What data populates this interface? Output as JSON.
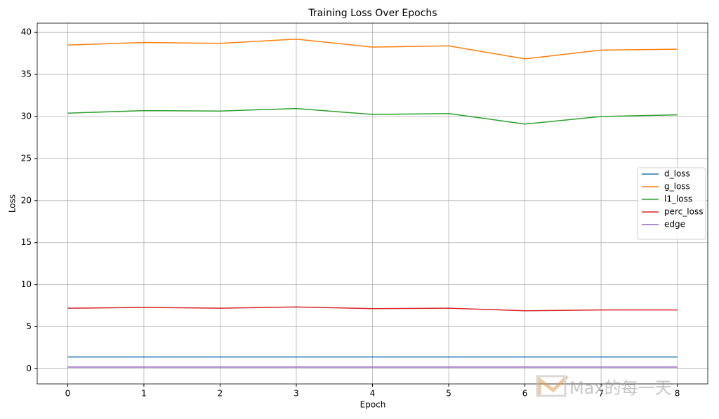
{
  "chart_data": {
    "type": "line",
    "title": "Training Loss Over Epochs",
    "x_label": "Epoch",
    "y_label": "Loss",
    "x": [
      0,
      1,
      2,
      3,
      4,
      5,
      6,
      7,
      8
    ],
    "series": [
      {
        "name": "d_loss",
        "color": "#1f77b4",
        "values": [
          1.4,
          1.4,
          1.4,
          1.4,
          1.4,
          1.4,
          1.4,
          1.4,
          1.4
        ]
      },
      {
        "name": "g_loss",
        "color": "#ff7f0e",
        "values": [
          38.5,
          38.8,
          38.7,
          39.2,
          38.25,
          38.4,
          36.85,
          37.9,
          38.0
        ]
      },
      {
        "name": "l1_loss",
        "color": "#2ca02c",
        "values": [
          30.4,
          30.7,
          30.65,
          30.95,
          30.25,
          30.35,
          29.1,
          30.0,
          30.2
        ]
      },
      {
        "name": "perc_loss",
        "color": "#d62728",
        "values": [
          7.2,
          7.3,
          7.2,
          7.35,
          7.15,
          7.2,
          6.9,
          7.0,
          7.0
        ]
      },
      {
        "name": "edge",
        "color": "#9467bd",
        "values": [
          0.2,
          0.2,
          0.2,
          0.2,
          0.2,
          0.2,
          0.2,
          0.2,
          0.2
        ]
      }
    ],
    "xlim": [
      -0.4,
      8.4
    ],
    "xticks": [
      0,
      1,
      2,
      3,
      4,
      5,
      6,
      7,
      8
    ],
    "ylim": [
      -1.8,
      41.1
    ],
    "yticks": [
      0,
      5,
      10,
      15,
      20,
      25,
      30,
      35,
      40
    ],
    "grid": true,
    "legend": "center right",
    "watermark": "Max的每一天"
  }
}
